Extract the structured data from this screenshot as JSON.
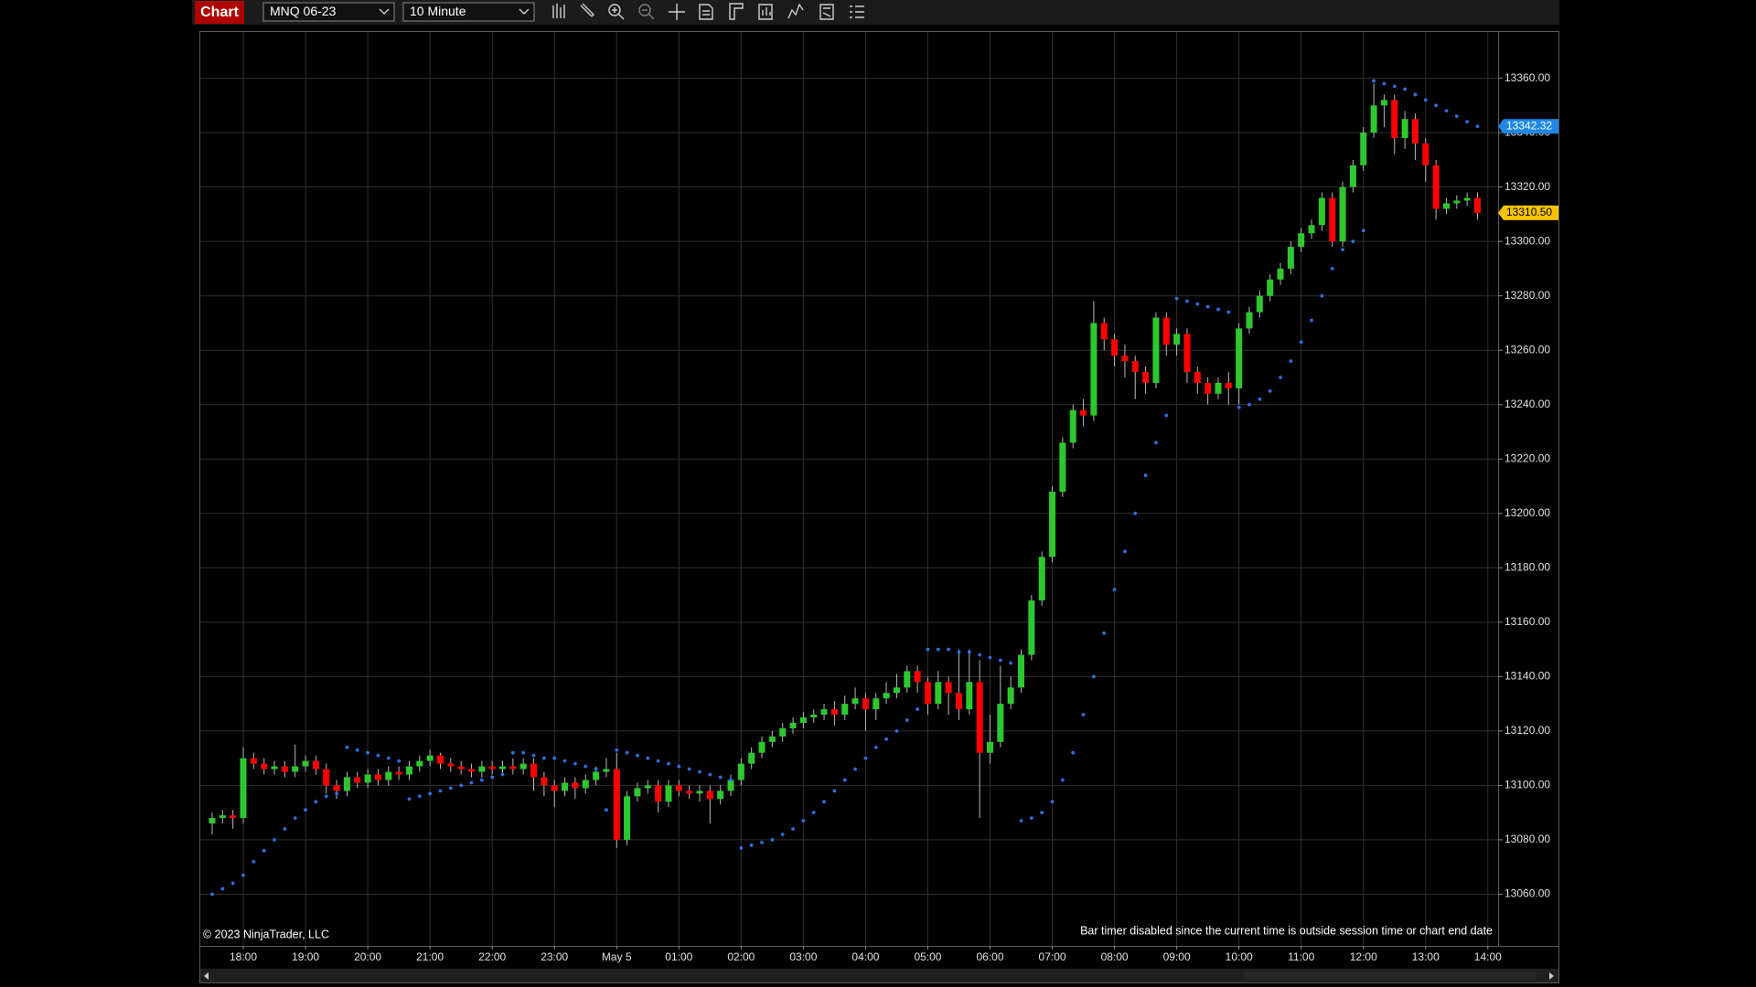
{
  "toolbar": {
    "title": "Chart",
    "instrument": "MNQ 06-23",
    "interval": "10 Minute"
  },
  "chart_data": {
    "type": "candlestick",
    "categories": [
      "17:30",
      "17:40",
      "17:50",
      "18:00",
      "18:10",
      "18:20",
      "18:30",
      "18:40",
      "18:50",
      "19:00",
      "19:10",
      "19:20",
      "19:30",
      "19:40",
      "19:50",
      "20:00",
      "20:10",
      "20:20",
      "20:30",
      "20:40",
      "20:50",
      "21:00",
      "21:10",
      "21:20",
      "21:30",
      "21:40",
      "21:50",
      "22:00",
      "22:10",
      "22:20",
      "22:30",
      "22:40",
      "22:50",
      "23:00",
      "23:10",
      "23:20",
      "23:30",
      "23:40",
      "23:50",
      "00:00",
      "00:10",
      "00:20",
      "00:30",
      "00:40",
      "00:50",
      "01:00",
      "01:10",
      "01:20",
      "01:30",
      "01:40",
      "01:50",
      "02:00",
      "02:10",
      "02:20",
      "02:30",
      "02:40",
      "02:50",
      "03:00",
      "03:10",
      "03:20",
      "03:30",
      "03:40",
      "03:50",
      "04:00",
      "04:10",
      "04:20",
      "04:30",
      "04:40",
      "04:50",
      "05:00",
      "05:10",
      "05:20",
      "05:30",
      "05:40",
      "05:50",
      "06:00",
      "06:10",
      "06:20",
      "06:30",
      "06:40",
      "06:50",
      "07:00",
      "07:10",
      "07:20",
      "07:30",
      "07:40",
      "07:50",
      "08:00",
      "08:10",
      "08:20",
      "08:30",
      "08:40",
      "08:50",
      "09:00",
      "09:10",
      "09:20",
      "09:30",
      "09:40",
      "09:50",
      "10:00",
      "10:10",
      "10:20",
      "10:30",
      "10:40",
      "10:50",
      "11:00",
      "11:10",
      "11:20",
      "11:30",
      "11:40",
      "11:50",
      "12:00",
      "12:10",
      "12:20",
      "12:30",
      "12:40",
      "12:50",
      "13:00",
      "13:10",
      "13:20",
      "13:30",
      "13:40",
      "13:50"
    ],
    "open": [
      13086,
      13088,
      13089,
      13088,
      13110,
      13108,
      13106,
      13107,
      13105,
      13107,
      13109,
      13106,
      13100,
      13098,
      13103,
      13101,
      13104,
      13102,
      13105,
      13104,
      13107,
      13109,
      13111,
      13108,
      13107,
      13106,
      13105,
      13107,
      13106,
      13107,
      13106,
      13108,
      13103,
      13100,
      13098,
      13101,
      13099,
      13102,
      13105,
      13106,
      13080,
      13096,
      13099,
      13100,
      13094,
      13100,
      13098,
      13097,
      13098,
      13095,
      13098,
      13102,
      13108,
      13112,
      13116,
      13118,
      13121,
      13123,
      13125,
      13126,
      13128,
      13126,
      13130,
      13132,
      13128,
      13132,
      13134,
      13136,
      13142,
      13138,
      13130,
      13138,
      13134,
      13128,
      13138,
      13112,
      13116,
      13130,
      13136,
      13148,
      13168,
      13184,
      13208,
      13226,
      13238,
      13236,
      13270,
      13264,
      13258,
      13256,
      13252,
      13248,
      13272,
      13262,
      13266,
      13252,
      13248,
      13244,
      13248,
      13246,
      13268,
      13274,
      13280,
      13286,
      13290,
      13298,
      13303,
      13306,
      13316,
      13300,
      13320,
      13328,
      13340,
      13350,
      13352,
      13338,
      13345,
      13336,
      13328,
      13312,
      13314,
      13315,
      13316
    ],
    "high": [
      13090,
      13091,
      13091,
      13114,
      13112,
      13110,
      13109,
      13109,
      13115,
      13111,
      13111,
      13108,
      13102,
      13105,
      13105,
      13106,
      13106,
      13107,
      13107,
      13109,
      13111,
      13113,
      13112,
      13110,
      13109,
      13108,
      13109,
      13109,
      13109,
      13110,
      13110,
      13110,
      13105,
      13102,
      13103,
      13103,
      13104,
      13107,
      13110,
      13112,
      13098,
      13101,
      13102,
      13102,
      13102,
      13102,
      13100,
      13100,
      13100,
      13100,
      13104,
      13110,
      13114,
      13118,
      13120,
      13123,
      13125,
      13127,
      13128,
      13130,
      13131,
      13133,
      13136,
      13134,
      13134,
      13138,
      13141,
      13144,
      13144,
      13140,
      13142,
      13140,
      13150,
      13150,
      13146,
      13126,
      13144,
      13140,
      13150,
      13170,
      13186,
      13210,
      13228,
      13240,
      13242,
      13278,
      13272,
      13266,
      13262,
      13258,
      13254,
      13274,
      13274,
      13268,
      13268,
      13254,
      13250,
      13250,
      13252,
      13270,
      13276,
      13282,
      13288,
      13292,
      13300,
      13305,
      13308,
      13318,
      13318,
      13322,
      13330,
      13342,
      13358,
      13354,
      13354,
      13348,
      13347,
      13338,
      13330,
      13316,
      13317,
      13318,
      13318
    ],
    "low": [
      13082,
      13086,
      13084,
      13086,
      13106,
      13104,
      13104,
      13103,
      13103,
      13105,
      13104,
      13097,
      13095,
      13096,
      13099,
      13099,
      13100,
      13100,
      13102,
      13102,
      13105,
      13107,
      13106,
      13105,
      13104,
      13103,
      13103,
      13104,
      13104,
      13104,
      13104,
      13098,
      13096,
      13092,
      13096,
      13095,
      13097,
      13100,
      13103,
      13077,
      13078,
      13094,
      13097,
      13090,
      13092,
      13096,
      13095,
      13094,
      13086,
      13093,
      13096,
      13100,
      13106,
      13110,
      13114,
      13116,
      13119,
      13121,
      13123,
      13124,
      13122,
      13124,
      13128,
      13120,
      13124,
      13130,
      13132,
      13134,
      13134,
      13126,
      13128,
      13126,
      13124,
      13126,
      13088,
      13108,
      13114,
      13128,
      13134,
      13146,
      13166,
      13182,
      13206,
      13224,
      13232,
      13234,
      13260,
      13254,
      13250,
      13242,
      13244,
      13246,
      13258,
      13258,
      13248,
      13244,
      13240,
      13242,
      13240,
      13240,
      13266,
      13272,
      13278,
      13284,
      13288,
      13296,
      13301,
      13304,
      13298,
      13298,
      13318,
      13326,
      13338,
      13342,
      13332,
      13334,
      13330,
      13322,
      13308,
      13310,
      13312,
      13313,
      13308
    ],
    "close": [
      13088,
      13089,
      13088,
      13110,
      13108,
      13106,
      13107,
      13105,
      13107,
      13109,
      13106,
      13100,
      13098,
      13103,
      13101,
      13104,
      13102,
      13105,
      13104,
      13107,
      13109,
      13111,
      13108,
      13107,
      13106,
      13105,
      13107,
      13106,
      13107,
      13106,
      13108,
      13103,
      13100,
      13098,
      13101,
      13099,
      13102,
      13105,
      13106,
      13080,
      13096,
      13099,
      13100,
      13094,
      13100,
      13098,
      13097,
      13098,
      13095,
      13098,
      13102,
      13108,
      13112,
      13116,
      13118,
      13121,
      13123,
      13125,
      13126,
      13128,
      13126,
      13130,
      13132,
      13128,
      13132,
      13134,
      13136,
      13142,
      13138,
      13130,
      13138,
      13134,
      13128,
      13138,
      13112,
      13116,
      13130,
      13136,
      13148,
      13168,
      13184,
      13208,
      13226,
      13238,
      13236,
      13270,
      13264,
      13258,
      13256,
      13252,
      13248,
      13272,
      13262,
      13266,
      13252,
      13248,
      13244,
      13248,
      13246,
      13268,
      13274,
      13280,
      13286,
      13290,
      13298,
      13303,
      13306,
      13316,
      13300,
      13320,
      13328,
      13340,
      13350,
      13352,
      13338,
      13345,
      13336,
      13328,
      13312,
      13314,
      13315,
      13316,
      13310.5
    ],
    "up_color": "#2ec82e",
    "down_color": "#ff0000",
    "wick_color": "#b8b8b8",
    "sar": {
      "color": "#2f6fe0",
      "values": [
        13060,
        13062,
        13064,
        13067,
        13072,
        13076,
        13080,
        13084,
        13088,
        13091,
        13094,
        13096,
        13097,
        13114,
        13113,
        13112,
        13111,
        13110,
        13109,
        13095,
        13096,
        13097,
        13098,
        13099,
        13100,
        13101,
        13102,
        13103,
        13104,
        13112,
        13112,
        13111,
        13110,
        13110,
        13109,
        13108,
        13107,
        13106,
        13091,
        13113,
        13112,
        13111,
        13110,
        13109,
        13108,
        13107,
        13106,
        13105,
        13104,
        13103,
        13102,
        13077,
        13078,
        13079,
        13080,
        13082,
        13084,
        13087,
        13090,
        13094,
        13098,
        13102,
        13106,
        13110,
        13114,
        13117,
        13120,
        13124,
        13128,
        13150,
        13150,
        13150,
        13149,
        13149,
        13148,
        13147,
        13146,
        13145,
        13087,
        13088,
        13090,
        13094,
        13102,
        13112,
        13126,
        13140,
        13156,
        13172,
        13186,
        13200,
        13214,
        13226,
        13236,
        13279,
        13278,
        13277,
        13276,
        13275,
        13274,
        13239,
        13240,
        13242,
        13245,
        13250,
        13256,
        13263,
        13271,
        13280,
        13290,
        13297,
        13300,
        13304,
        13359,
        13358,
        13357,
        13356,
        13354,
        13352,
        13350,
        13348,
        13346,
        13344,
        13342.32
      ]
    },
    "price_markers": [
      {
        "value": 13342.32,
        "label": "13342.32",
        "color": "#1e88e5",
        "text_color": "#ffffff"
      },
      {
        "value": 13310.5,
        "label": "13310.50",
        "color": "#f5c400",
        "text_color": "#000000"
      }
    ],
    "ylim": [
      13041,
      13377
    ],
    "yticks": [
      {
        "value": 13060,
        "label": "13060.00"
      },
      {
        "value": 13080,
        "label": "13080.00"
      },
      {
        "value": 13100,
        "label": "13100.00"
      },
      {
        "value": 13120,
        "label": "13120.00"
      },
      {
        "value": 13140,
        "label": "13140.00"
      },
      {
        "value": 13160,
        "label": "13160.00"
      },
      {
        "value": 13180,
        "label": "13180.00"
      },
      {
        "value": 13200,
        "label": "13200.00"
      },
      {
        "value": 13220,
        "label": "13220.00"
      },
      {
        "value": 13240,
        "label": "13240.00"
      },
      {
        "value": 13260,
        "label": "13260.00"
      },
      {
        "value": 13280,
        "label": "13280.00"
      },
      {
        "value": 13300,
        "label": "13300.00"
      },
      {
        "value": 13320,
        "label": "13320.00"
      },
      {
        "value": 13340,
        "label": "13340.00"
      },
      {
        "value": 13360,
        "label": "13360.00"
      }
    ],
    "xticks": [
      "18:00",
      "19:00",
      "20:00",
      "21:00",
      "22:00",
      "23:00",
      {
        "value": "00:00",
        "label": "May 5"
      },
      "01:00",
      "02:00",
      "03:00",
      "04:00",
      "05:00",
      "06:00",
      "07:00",
      "08:00",
      "09:00",
      "10:00",
      "11:00",
      "12:00",
      "13:00",
      "14:00"
    ],
    "grid": true,
    "copyright": "© 2023 NinjaTrader, LLC",
    "status": "Bar timer disabled since the current time is outside session time or chart end date"
  }
}
